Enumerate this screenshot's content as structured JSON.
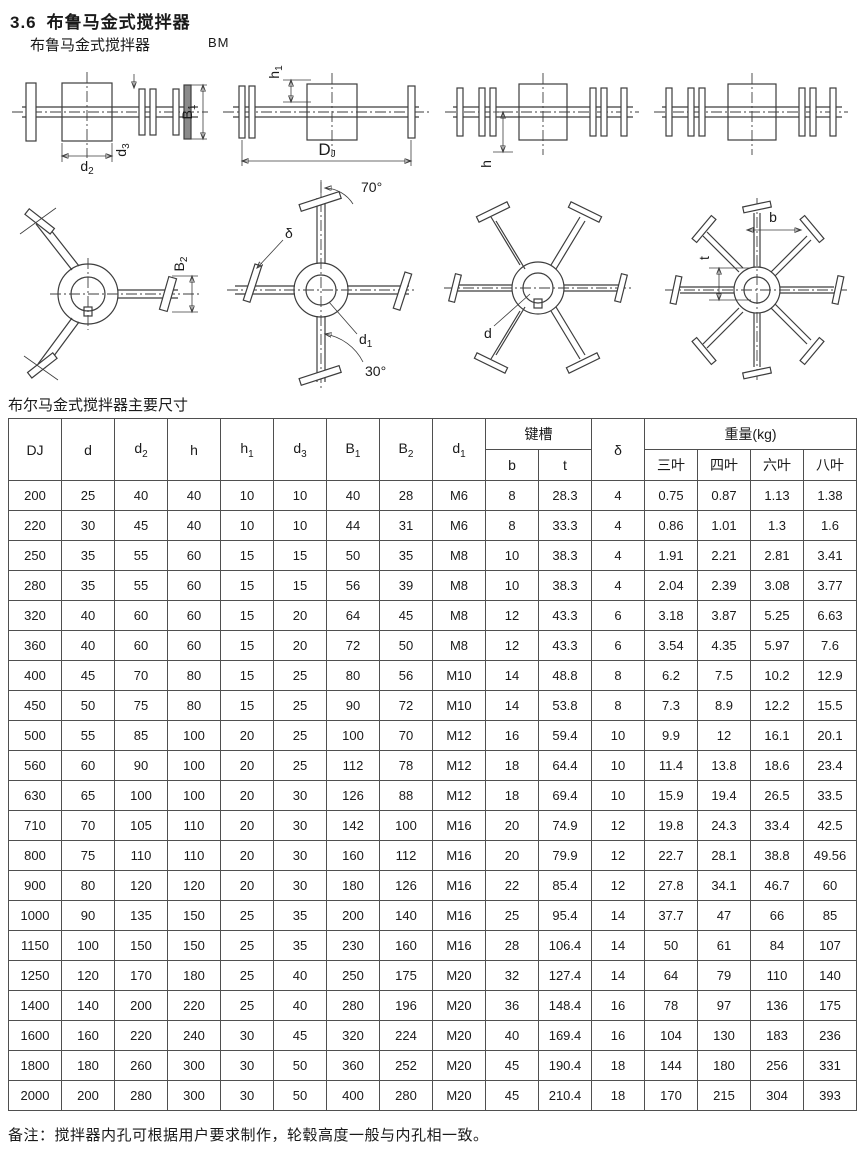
{
  "page": {
    "section_number": "3.6",
    "title": "布鲁马金式搅拌器",
    "subtitle": "布鲁马金式搅拌器",
    "model_code": "BM",
    "note": "备注：搅拌器内孔可根据用户要求制作，轮毂高度一般与内孔相一致。"
  },
  "drawing_labels": {
    "d2_base": "d",
    "d2_sub": "2",
    "d3_base": "d",
    "d3_sub": "3",
    "B1_base": "B",
    "B1_sub": "1",
    "h1_base": "h",
    "h1_sub": "1",
    "DJ_base": "D",
    "DJ_sub": "J",
    "h": "h",
    "B2_base": "B",
    "B2_sub": "2",
    "delta": "δ",
    "deg70": "70°",
    "deg30": "30°",
    "d1_base": "d",
    "d1_sub": "1",
    "d": "d",
    "b": "b",
    "t": "t"
  },
  "table": {
    "title": "布尔马金式搅拌器主要尺寸",
    "header_row1": [
      {
        "text": "DJ"
      },
      {
        "text": "d"
      },
      {
        "text": "d",
        "sub": "2"
      },
      {
        "text": "h"
      },
      {
        "text": "h",
        "sub": "1"
      },
      {
        "text": "d",
        "sub": "3"
      },
      {
        "text": "B",
        "sub": "1"
      },
      {
        "text": "B",
        "sub": "2"
      },
      {
        "text": "d",
        "sub": "1"
      },
      {
        "text": "键槽",
        "colspan": 2
      },
      {
        "text": "δ"
      },
      {
        "text": "重量(kg)",
        "colspan": 4
      }
    ],
    "header_row2": [
      "b",
      "t",
      "三叶",
      "四叶",
      "六叶",
      "八叶"
    ],
    "rows": [
      [
        "200",
        "25",
        "40",
        "40",
        "10",
        "10",
        "40",
        "28",
        "M6",
        "8",
        "28.3",
        "4",
        "0.75",
        "0.87",
        "1.13",
        "1.38"
      ],
      [
        "220",
        "30",
        "45",
        "40",
        "10",
        "10",
        "44",
        "31",
        "M6",
        "8",
        "33.3",
        "4",
        "0.86",
        "1.01",
        "1.3",
        "1.6"
      ],
      [
        "250",
        "35",
        "55",
        "60",
        "15",
        "15",
        "50",
        "35",
        "M8",
        "10",
        "38.3",
        "4",
        "1.91",
        "2.21",
        "2.81",
        "3.41"
      ],
      [
        "280",
        "35",
        "55",
        "60",
        "15",
        "15",
        "56",
        "39",
        "M8",
        "10",
        "38.3",
        "4",
        "2.04",
        "2.39",
        "3.08",
        "3.77"
      ],
      [
        "320",
        "40",
        "60",
        "60",
        "15",
        "20",
        "64",
        "45",
        "M8",
        "12",
        "43.3",
        "6",
        "3.18",
        "3.87",
        "5.25",
        "6.63"
      ],
      [
        "360",
        "40",
        "60",
        "60",
        "15",
        "20",
        "72",
        "50",
        "M8",
        "12",
        "43.3",
        "6",
        "3.54",
        "4.35",
        "5.97",
        "7.6"
      ],
      [
        "400",
        "45",
        "70",
        "80",
        "15",
        "25",
        "80",
        "56",
        "M10",
        "14",
        "48.8",
        "8",
        "6.2",
        "7.5",
        "10.2",
        "12.9"
      ],
      [
        "450",
        "50",
        "75",
        "80",
        "15",
        "25",
        "90",
        "72",
        "M10",
        "14",
        "53.8",
        "8",
        "7.3",
        "8.9",
        "12.2",
        "15.5"
      ],
      [
        "500",
        "55",
        "85",
        "100",
        "20",
        "25",
        "100",
        "70",
        "M12",
        "16",
        "59.4",
        "10",
        "9.9",
        "12",
        "16.1",
        "20.1"
      ],
      [
        "560",
        "60",
        "90",
        "100",
        "20",
        "25",
        "112",
        "78",
        "M12",
        "18",
        "64.4",
        "10",
        "11.4",
        "13.8",
        "18.6",
        "23.4"
      ],
      [
        "630",
        "65",
        "100",
        "100",
        "20",
        "30",
        "126",
        "88",
        "M12",
        "18",
        "69.4",
        "10",
        "15.9",
        "19.4",
        "26.5",
        "33.5"
      ],
      [
        "710",
        "70",
        "105",
        "110",
        "20",
        "30",
        "142",
        "100",
        "M16",
        "20",
        "74.9",
        "12",
        "19.8",
        "24.3",
        "33.4",
        "42.5"
      ],
      [
        "800",
        "75",
        "110",
        "110",
        "20",
        "30",
        "160",
        "112",
        "M16",
        "20",
        "79.9",
        "12",
        "22.7",
        "28.1",
        "38.8",
        "49.56"
      ],
      [
        "900",
        "80",
        "120",
        "120",
        "20",
        "30",
        "180",
        "126",
        "M16",
        "22",
        "85.4",
        "12",
        "27.8",
        "34.1",
        "46.7",
        "60"
      ],
      [
        "1000",
        "90",
        "135",
        "150",
        "25",
        "35",
        "200",
        "140",
        "M16",
        "25",
        "95.4",
        "14",
        "37.7",
        "47",
        "66",
        "85"
      ],
      [
        "1150",
        "100",
        "150",
        "150",
        "25",
        "35",
        "230",
        "160",
        "M16",
        "28",
        "106.4",
        "14",
        "50",
        "61",
        "84",
        "107"
      ],
      [
        "1250",
        "120",
        "170",
        "180",
        "25",
        "40",
        "250",
        "175",
        "M20",
        "32",
        "127.4",
        "14",
        "64",
        "79",
        "110",
        "140"
      ],
      [
        "1400",
        "140",
        "200",
        "220",
        "25",
        "40",
        "280",
        "196",
        "M20",
        "36",
        "148.4",
        "16",
        "78",
        "97",
        "136",
        "175"
      ],
      [
        "1600",
        "160",
        "220",
        "240",
        "30",
        "45",
        "320",
        "224",
        "M20",
        "40",
        "169.4",
        "16",
        "104",
        "130",
        "183",
        "236"
      ],
      [
        "1800",
        "180",
        "260",
        "300",
        "30",
        "50",
        "360",
        "252",
        "M20",
        "45",
        "190.4",
        "18",
        "144",
        "180",
        "256",
        "331"
      ],
      [
        "2000",
        "200",
        "280",
        "300",
        "30",
        "50",
        "400",
        "280",
        "M20",
        "45",
        "210.4",
        "18",
        "170",
        "215",
        "304",
        "393"
      ]
    ]
  }
}
